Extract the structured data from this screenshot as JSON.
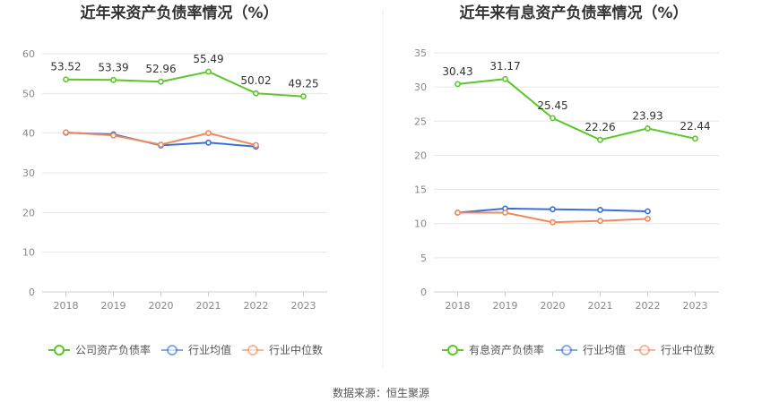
{
  "colors": {
    "company": "#5cc72a",
    "industry_avg": "#3a6fd8",
    "industry_median": "#f08a5d",
    "grid": "#e6e6e6",
    "axis": "#cccccc"
  },
  "source": "数据来源：恒生聚源",
  "chart_data": [
    {
      "type": "line",
      "title": "近年来资产负债率情况（%）",
      "x": [
        "2018",
        "2019",
        "2020",
        "2021",
        "2022",
        "2023"
      ],
      "ylim": [
        0,
        60
      ],
      "yticks": [
        "0",
        "10",
        "20",
        "30",
        "40",
        "50",
        "60"
      ],
      "grid": true,
      "legend_position": "bottom",
      "series": [
        {
          "name": "公司资产负债率",
          "key": "company",
          "values": [
            53.52,
            53.39,
            52.96,
            55.49,
            50.02,
            49.25
          ],
          "labels": [
            "53.52",
            "53.39",
            "52.96",
            "55.49",
            "50.02",
            "49.25"
          ]
        },
        {
          "name": "行业均值",
          "key": "industry_avg",
          "values": [
            40.1,
            39.7,
            36.9,
            37.6,
            36.6,
            null
          ],
          "labels": []
        },
        {
          "name": "行业中位数",
          "key": "industry_median",
          "values": [
            40.2,
            39.4,
            37.1,
            40.0,
            37.0,
            null
          ],
          "labels": []
        }
      ]
    },
    {
      "type": "line",
      "title": "近年来有息资产负债率情况（%）",
      "x": [
        "2018",
        "2019",
        "2020",
        "2021",
        "2022",
        "2023"
      ],
      "ylim": [
        0,
        35
      ],
      "yticks": [
        "0",
        "5",
        "10",
        "15",
        "20",
        "25",
        "30",
        "35"
      ],
      "grid": true,
      "legend_position": "bottom",
      "series": [
        {
          "name": "有息资产负债率",
          "key": "company",
          "values": [
            30.43,
            31.17,
            25.45,
            22.26,
            23.93,
            22.44
          ],
          "labels": [
            "30.43",
            "31.17",
            "25.45",
            "22.26",
            "23.93",
            "22.44"
          ]
        },
        {
          "name": "行业均值",
          "key": "industry_avg",
          "values": [
            11.6,
            12.2,
            12.1,
            12.0,
            11.8,
            null
          ],
          "labels": []
        },
        {
          "name": "行业中位数",
          "key": "industry_median",
          "values": [
            11.6,
            11.6,
            10.2,
            10.4,
            10.7,
            null
          ],
          "labels": []
        }
      ]
    }
  ]
}
